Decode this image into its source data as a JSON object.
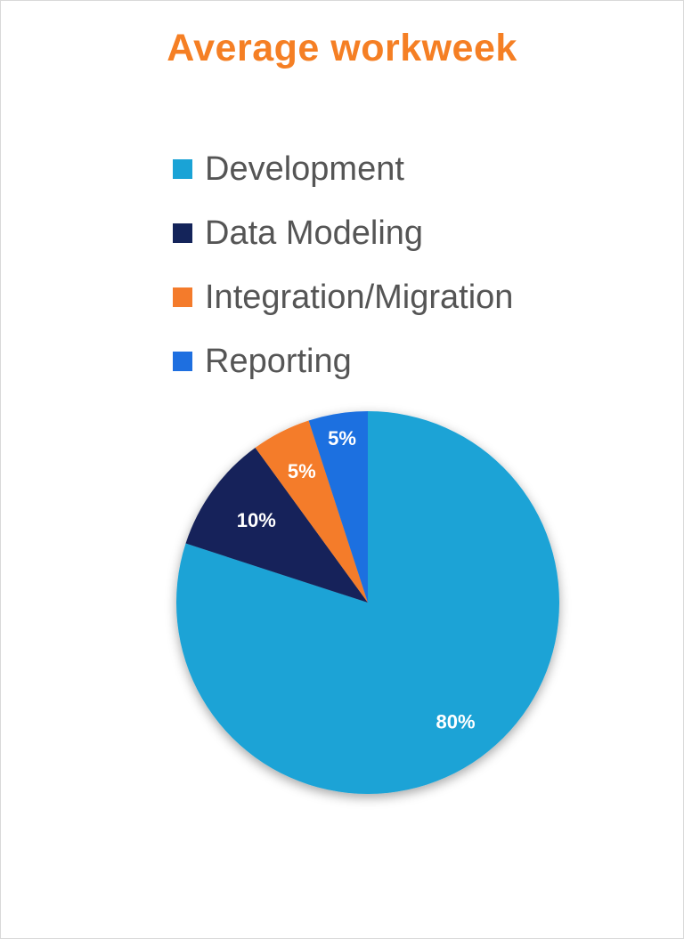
{
  "chart_data": {
    "type": "pie",
    "title": "Average workweek",
    "categories": [
      "Development",
      "Data Modeling",
      "Integration/Migration",
      "Reporting"
    ],
    "values": [
      80,
      10,
      5,
      5
    ],
    "data_labels": [
      "80%",
      "10%",
      "5%",
      "5%"
    ],
    "colors": [
      "#1aa3d6",
      "#14245a",
      "#f47b2b",
      "#1e6fe0"
    ],
    "legend_position": "top"
  }
}
